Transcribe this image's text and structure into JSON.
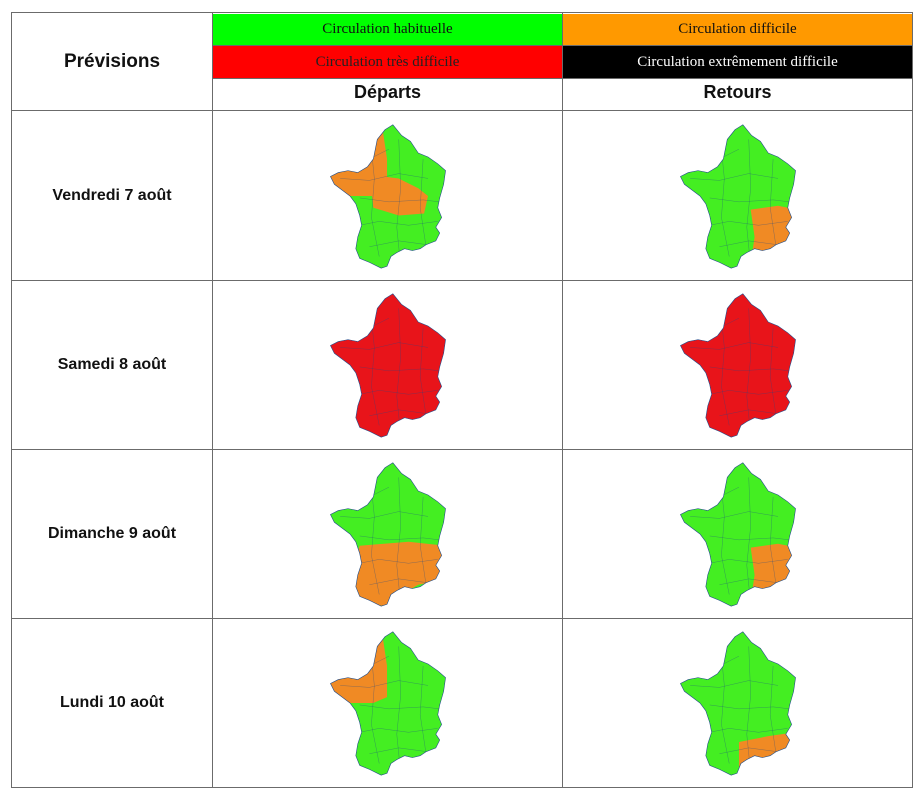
{
  "table": {
    "title": "Prévisions",
    "legend": [
      {
        "label": "Circulation habituelle",
        "color": "#00ff00",
        "text_color": "#111111"
      },
      {
        "label": "Circulation difficile",
        "color": "#ff9900",
        "text_color": "#111111"
      },
      {
        "label": "Circulation très difficile",
        "color": "#ff0000",
        "text_color": "#222222"
      },
      {
        "label": "Circulation extrêmement difficile",
        "color": "#000000",
        "text_color": "#ffffff"
      }
    ],
    "columns": [
      "Départs",
      "Retours"
    ],
    "rows": [
      {
        "day": "Vendredi 7 août",
        "departs": "green-west-center-orange",
        "retours": "green-southeast-orange"
      },
      {
        "day": "Samedi 8 août",
        "departs": "all-red",
        "retours": "all-red"
      },
      {
        "day": "Dimanche 9 août",
        "departs": "green-south-orange",
        "retours": "green-southeast-orange"
      },
      {
        "day": "Lundi 10 août",
        "departs": "green-west-orange",
        "retours": "green-mediterranean-orange"
      }
    ],
    "map_colors": {
      "green": "#44ee22",
      "orange": "#f08a24",
      "red": "#e8141a",
      "border": "#1f4a8a"
    }
  }
}
